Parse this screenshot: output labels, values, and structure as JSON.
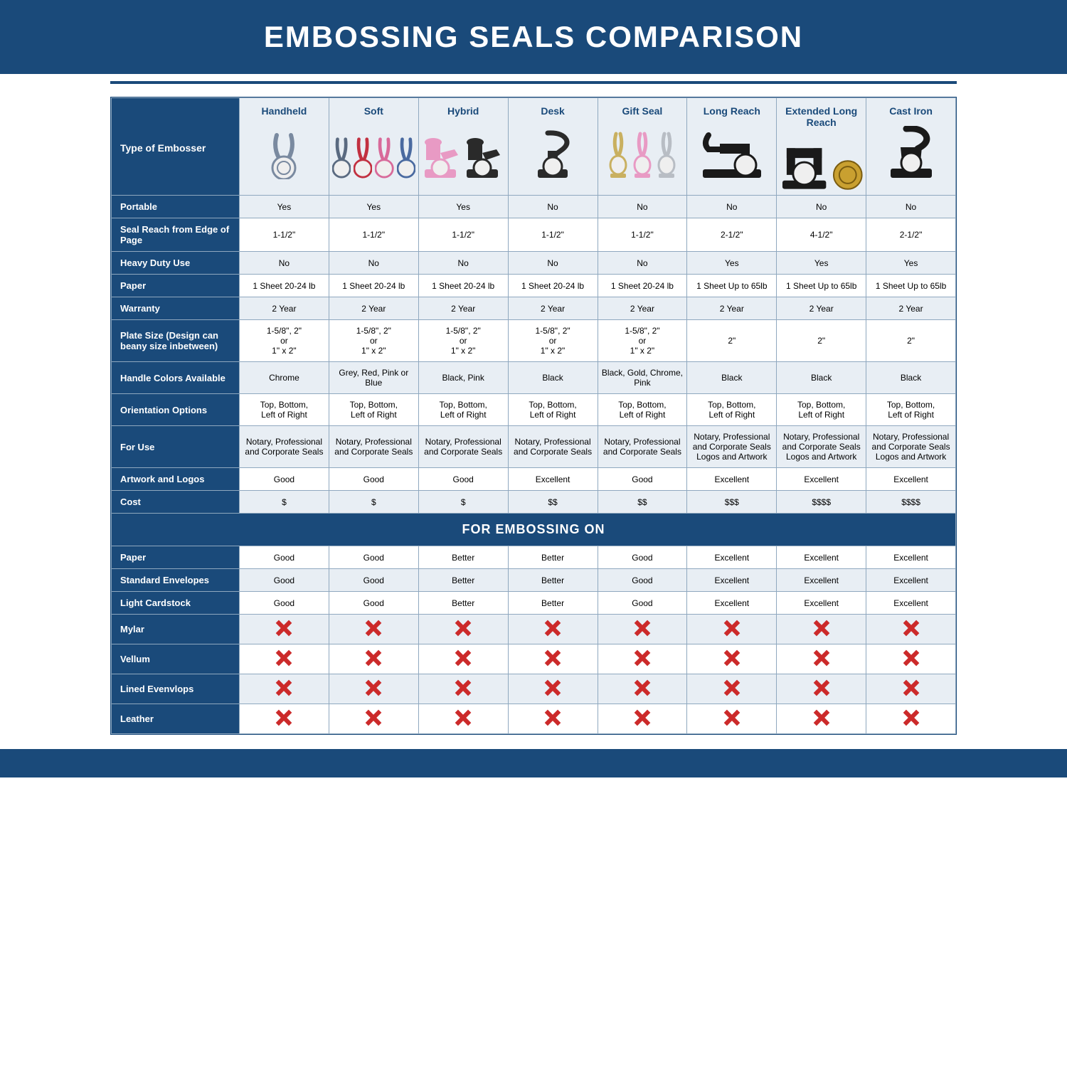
{
  "title": "EMBOSSING SEALS COMPARISON",
  "colors": {
    "brand": "#1a4a7a",
    "light_row": "#e8eef4",
    "white": "#ffffff",
    "border": "#8fa8bf",
    "cross": "#cc2a2a"
  },
  "typography": {
    "title_fontsize": 42,
    "header_fontsize": 14,
    "rowlabel_fontsize": 13,
    "cell_fontsize": 12
  },
  "row_header_label": "Type of Embosser",
  "columns": [
    {
      "label": "Handheld",
      "icon_colors": [
        "#7a8aa0"
      ]
    },
    {
      "label": "Soft",
      "icon_colors": [
        "#5a6a80",
        "#c23040",
        "#d86a9a",
        "#4a6aa0"
      ]
    },
    {
      "label": "Hybrid",
      "icon_colors": [
        "#e89ac4",
        "#2a2a2a"
      ]
    },
    {
      "label": "Desk",
      "icon_colors": [
        "#2a2a2a"
      ]
    },
    {
      "label": "Gift Seal",
      "icon_colors": [
        "#c9b060",
        "#e89ac4",
        "#b8bdc4"
      ]
    },
    {
      "label": "Long Reach",
      "icon_colors": [
        "#1a1a1a"
      ]
    },
    {
      "label": "Extended Long Reach",
      "icon_colors": [
        "#1a1a1a",
        "#c9a030"
      ]
    },
    {
      "label": "Cast Iron",
      "icon_colors": [
        "#1a1a1a"
      ]
    }
  ],
  "rows": [
    {
      "label": "Portable",
      "cells": [
        "Yes",
        "Yes",
        "Yes",
        "No",
        "No",
        "No",
        "No",
        "No"
      ]
    },
    {
      "label": "Seal Reach from Edge of Page",
      "cells": [
        "1-1/2\"",
        "1-1/2\"",
        "1-1/2\"",
        "1-1/2\"",
        "1-1/2\"",
        "2-1/2\"",
        "4-1/2\"",
        "2-1/2\""
      ]
    },
    {
      "label": "Heavy Duty Use",
      "cells": [
        "No",
        "No",
        "No",
        "No",
        "No",
        "Yes",
        "Yes",
        "Yes"
      ]
    },
    {
      "label": "Paper",
      "cells": [
        "1 Sheet 20-24 lb",
        "1 Sheet 20-24 lb",
        "1 Sheet 20-24 lb",
        "1 Sheet 20-24 lb",
        "1 Sheet 20-24 lb",
        "1 Sheet Up to 65lb",
        "1 Sheet Up to 65lb",
        "1 Sheet Up to 65lb"
      ]
    },
    {
      "label": "Warranty",
      "cells": [
        "2 Year",
        "2 Year",
        "2 Year",
        "2 Year",
        "2 Year",
        "2 Year",
        "2 Year",
        "2 Year"
      ]
    },
    {
      "label": "Plate Size (Design can beany size inbetween)",
      "cells": [
        "1-5/8\", 2\"\nor\n1\" x 2\"",
        "1-5/8\", 2\"\nor\n1\" x 2\"",
        "1-5/8\", 2\"\nor\n1\" x 2\"",
        "1-5/8\", 2\"\nor\n1\" x 2\"",
        "1-5/8\", 2\"\nor\n1\" x 2\"",
        "2\"",
        "2\"",
        "2\""
      ]
    },
    {
      "label": "Handle Colors Available",
      "cells": [
        "Chrome",
        "Grey, Red, Pink or Blue",
        "Black, Pink",
        "Black",
        "Black, Gold, Chrome, Pink",
        "Black",
        "Black",
        "Black"
      ]
    },
    {
      "label": "Orientation Options",
      "cells": [
        "Top, Bottom,\nLeft of Right",
        "Top, Bottom,\nLeft of Right",
        "Top, Bottom,\nLeft of Right",
        "Top, Bottom,\nLeft of Right",
        "Top, Bottom,\nLeft of Right",
        "Top, Bottom,\nLeft of Right",
        "Top, Bottom,\nLeft of Right",
        "Top, Bottom,\nLeft of Right"
      ]
    },
    {
      "label": "For Use",
      "cells": [
        "Notary, Professional and Corporate Seals",
        "Notary, Professional and Corporate Seals",
        "Notary, Professional and Corporate Seals",
        "Notary, Professional and Corporate Seals",
        "Notary, Professional and Corporate Seals",
        "Notary, Professional and Corporate Seals Logos and Artwork",
        "Notary, Professional and Corporate Seals Logos and Artwork",
        "Notary, Professional and Corporate Seals Logos and Artwork"
      ]
    },
    {
      "label": "Artwork and Logos",
      "cells": [
        "Good",
        "Good",
        "Good",
        "Excellent",
        "Good",
        "Excellent",
        "Excellent",
        "Excellent"
      ]
    },
    {
      "label": "Cost",
      "cells": [
        "$",
        "$",
        "$",
        "$$",
        "$$",
        "$$$",
        "$$$$",
        "$$$$"
      ]
    }
  ],
  "section_header": "FOR EMBOSSING ON",
  "material_rows": [
    {
      "label": "Paper",
      "cells": [
        "Good",
        "Good",
        "Better",
        "Better",
        "Good",
        "Excellent",
        "Excellent",
        "Excellent"
      ]
    },
    {
      "label": "Standard Envelopes",
      "cells": [
        "Good",
        "Good",
        "Better",
        "Better",
        "Good",
        "Excellent",
        "Excellent",
        "Excellent"
      ]
    },
    {
      "label": "Light Cardstock",
      "cells": [
        "Good",
        "Good",
        "Better",
        "Better",
        "Good",
        "Excellent",
        "Excellent",
        "Excellent"
      ]
    },
    {
      "label": "Mylar",
      "cells": [
        "X",
        "X",
        "X",
        "X",
        "X",
        "X",
        "X",
        "X"
      ]
    },
    {
      "label": "Vellum",
      "cells": [
        "X",
        "X",
        "X",
        "X",
        "X",
        "X",
        "X",
        "X"
      ]
    },
    {
      "label": "Lined Evenvlops",
      "cells": [
        "X",
        "X",
        "X",
        "X",
        "X",
        "X",
        "X",
        "X"
      ]
    },
    {
      "label": "Leather",
      "cells": [
        "X",
        "X",
        "X",
        "X",
        "X",
        "X",
        "X",
        "X"
      ]
    }
  ]
}
